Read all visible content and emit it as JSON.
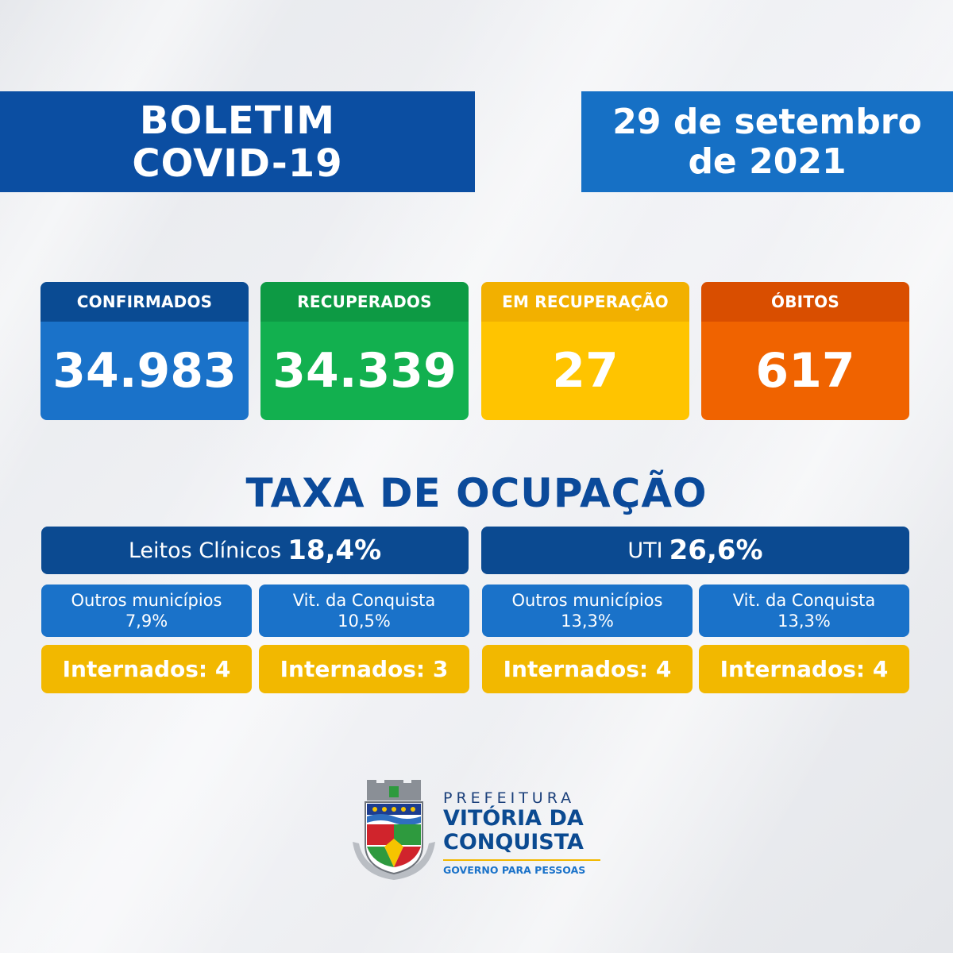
{
  "header": {
    "title_line1": "BOLETIM",
    "title_line2": "COVID-19",
    "date_line1": "29 de setembro",
    "date_line2": "de 2021"
  },
  "stats": [
    {
      "label": "CONFIRMADOS",
      "value": "34.983"
    },
    {
      "label": "RECUPERADOS",
      "value": "34.339"
    },
    {
      "label": "EM RECUPERAÇÃO",
      "value": "27"
    },
    {
      "label": "ÓBITOS",
      "value": "617"
    }
  ],
  "occupancy": {
    "title": "TAXA DE OCUPAÇÃO",
    "clinical": {
      "label": "Leitos Clínicos",
      "pct": "18,4%",
      "others_label": "Outros municípios",
      "others_pct": "7,9%",
      "local_label": "Vit. da Conquista",
      "local_pct": "10,5%",
      "others_interned": "Internados: 4",
      "local_interned": "Internados: 3"
    },
    "icu": {
      "label": "UTI",
      "pct": "26,6%",
      "others_label": "Outros municípios",
      "others_pct": "13,3%",
      "local_label": "Vit. da Conquista",
      "local_pct": "13,3%",
      "others_interned": "Internados: 4",
      "local_interned": "Internados: 4"
    }
  },
  "logo": {
    "prefeitura": "PREFEITURA",
    "city_line1": "VITÓRIA DA",
    "city_line2": "CONQUISTA",
    "slogan": "GOVERNO PARA PESSOAS"
  },
  "colors": {
    "title_bg": "#0b4ea2",
    "date_bg": "#1670c5",
    "confirmed": "#1a72c9",
    "recovered": "#12b04f",
    "recovering": "#ffc400",
    "deaths": "#f06300",
    "heading_text": "#0b4a9a"
  }
}
